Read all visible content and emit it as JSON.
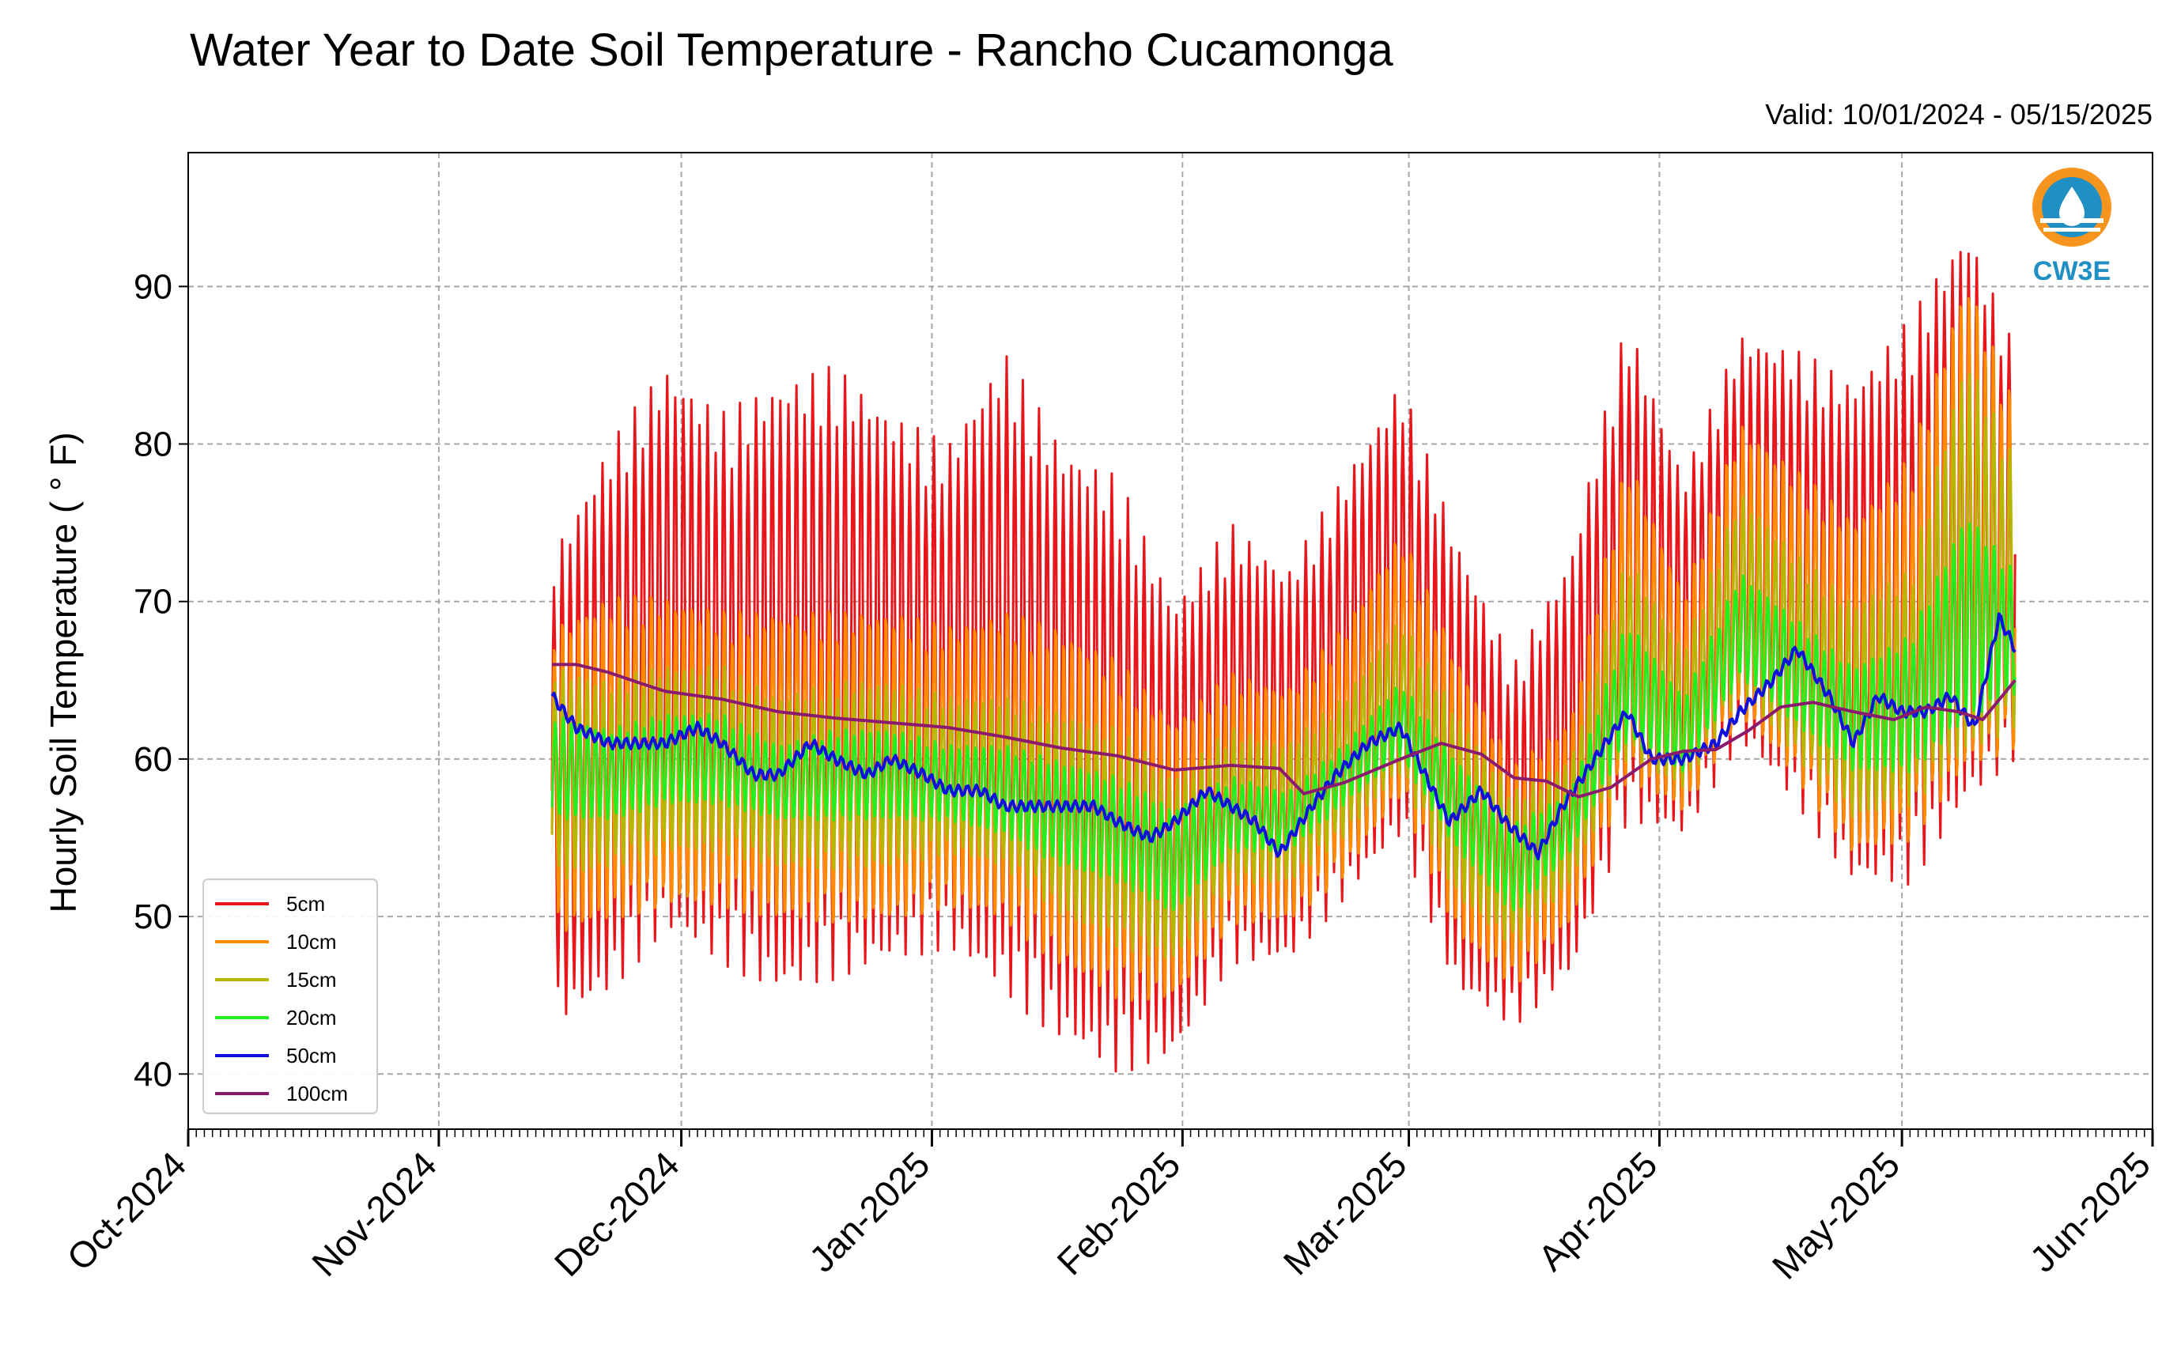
{
  "chart_data": {
    "type": "line",
    "title": "Water Year to Date Soil Temperature - Rancho Cucamonga",
    "subtitle": "Valid: 10/01/2024 - 05/15/2025",
    "xlabel": "",
    "ylabel": "Hourly Soil Temperature ( ° F)",
    "ylim": [
      36.5,
      98.5
    ],
    "yticks": [
      40,
      50,
      60,
      70,
      80,
      90
    ],
    "xlim": [
      "2024-10-01",
      "2025-06-01"
    ],
    "xticks": [
      {
        "date": "2024-10-01",
        "label": "Oct-2024"
      },
      {
        "date": "2024-11-01",
        "label": "Nov-2024"
      },
      {
        "date": "2024-12-01",
        "label": "Dec-2024"
      },
      {
        "date": "2025-01-01",
        "label": "Jan-2025"
      },
      {
        "date": "2025-02-01",
        "label": "Feb-2025"
      },
      {
        "date": "2025-03-01",
        "label": "Mar-2025"
      },
      {
        "date": "2025-04-01",
        "label": "Apr-2025"
      },
      {
        "date": "2025-05-01",
        "label": "May-2025"
      },
      {
        "date": "2025-06-01",
        "label": "Jun-2025"
      }
    ],
    "grid": true,
    "legend_position": "lower-left",
    "logo_text": "CW3E",
    "series": [
      {
        "name": "5cm",
        "color": "#e8151b",
        "dates": [
          "2024-11-15",
          "2024-11-22",
          "2024-11-29",
          "2024-12-06",
          "2024-12-13",
          "2024-12-20",
          "2024-12-27",
          "2025-01-03",
          "2025-01-10",
          "2025-01-17",
          "2025-01-24",
          "2025-01-31",
          "2025-02-07",
          "2025-02-14",
          "2025-02-21",
          "2025-02-28",
          "2025-03-07",
          "2025-03-14",
          "2025-03-21",
          "2025-03-28",
          "2025-04-04",
          "2025-04-11",
          "2025-04-18",
          "2025-04-25",
          "2025-05-02",
          "2025-05-09",
          "2025-05-15"
        ],
        "max": [
          73,
          80,
          85,
          82,
          84,
          85,
          82,
          80,
          86,
          80,
          78,
          70,
          75,
          72,
          78,
          84,
          74,
          66,
          73,
          88,
          78,
          87,
          86,
          84,
          88,
          94,
          86
        ],
        "min": [
          43,
          45,
          49,
          47,
          45,
          46,
          47,
          48,
          45,
          42,
          40,
          41,
          47,
          47,
          51,
          55,
          45,
          43,
          46,
          56,
          55,
          61,
          57,
          52,
          52,
          57,
          60
        ]
      },
      {
        "name": "10cm",
        "color": "#ff8c00",
        "dates": [
          "2024-11-15",
          "2024-11-22",
          "2024-11-29",
          "2024-12-06",
          "2024-12-13",
          "2024-12-20",
          "2024-12-27",
          "2025-01-03",
          "2025-01-10",
          "2025-01-17",
          "2025-01-24",
          "2025-01-31",
          "2025-02-07",
          "2025-02-14",
          "2025-02-21",
          "2025-02-28",
          "2025-03-07",
          "2025-03-14",
          "2025-03-21",
          "2025-03-28",
          "2025-04-04",
          "2025-04-11",
          "2025-04-18",
          "2025-04-25",
          "2025-05-02",
          "2025-05-09",
          "2025-05-15"
        ],
        "max": [
          69,
          71,
          71,
          70,
          70,
          70,
          70,
          69,
          70,
          69,
          67,
          63,
          66,
          65,
          69,
          75,
          67,
          60,
          63,
          80,
          71,
          82,
          79,
          76,
          80,
          92,
          83
        ],
        "min": [
          48,
          49,
          50,
          50,
          49,
          49,
          49,
          50,
          49,
          46,
          44,
          44,
          49,
          49,
          52,
          57,
          48,
          45,
          49,
          58,
          56,
          62,
          58,
          53,
          54,
          58,
          60
        ]
      },
      {
        "name": "15cm",
        "color": "#b5b800",
        "dates": [
          "2024-11-15",
          "2024-11-22",
          "2024-11-29",
          "2024-12-06",
          "2024-12-13",
          "2024-12-20",
          "2024-12-27",
          "2025-01-03",
          "2025-01-10",
          "2025-01-17",
          "2025-01-24",
          "2025-01-31",
          "2025-02-07",
          "2025-02-14",
          "2025-02-21",
          "2025-02-28",
          "2025-03-07",
          "2025-03-14",
          "2025-03-21",
          "2025-03-28",
          "2025-04-04",
          "2025-04-11",
          "2025-04-18",
          "2025-04-25",
          "2025-05-02",
          "2025-05-09",
          "2025-05-15"
        ],
        "max": [
          66,
          65,
          66,
          66,
          64,
          65,
          65,
          64,
          64,
          63,
          62,
          59,
          62,
          61,
          64,
          69,
          63,
          58,
          60,
          73,
          67,
          77,
          73,
          70,
          72,
          86,
          79
        ],
        "min": [
          52,
          53,
          54,
          54,
          53,
          53,
          53,
          54,
          53,
          50,
          48,
          47,
          52,
          52,
          55,
          59,
          51,
          48,
          52,
          60,
          58,
          64,
          60,
          56,
          57,
          60,
          62
        ]
      },
      {
        "name": "20cm",
        "color": "#22ee22",
        "dates": [
          "2024-11-15",
          "2024-11-22",
          "2024-11-29",
          "2024-12-06",
          "2024-12-13",
          "2024-12-20",
          "2024-12-27",
          "2025-01-03",
          "2025-01-10",
          "2025-01-17",
          "2025-01-24",
          "2025-01-31",
          "2025-02-07",
          "2025-02-14",
          "2025-02-21",
          "2025-02-28",
          "2025-03-07",
          "2025-03-14",
          "2025-03-21",
          "2025-03-28",
          "2025-04-04",
          "2025-04-11",
          "2025-04-18",
          "2025-04-25",
          "2025-05-02",
          "2025-05-09",
          "2025-05-15"
        ],
        "max": [
          63,
          62,
          63,
          63,
          61,
          62,
          62,
          61,
          61,
          60,
          59,
          57,
          59,
          58,
          61,
          65,
          60,
          56,
          58,
          69,
          64,
          72,
          69,
          66,
          68,
          76,
          72
        ],
        "min": [
          56,
          56,
          57,
          57,
          56,
          56,
          56,
          56,
          55,
          53,
          52,
          50,
          54,
          54,
          57,
          60,
          54,
          50,
          54,
          61,
          59,
          65,
          62,
          59,
          59,
          62,
          64
        ]
      },
      {
        "name": "50cm",
        "color": "#1010dd",
        "dates": [
          "2024-11-15",
          "2024-11-18",
          "2024-11-22",
          "2024-11-29",
          "2024-12-03",
          "2024-12-06",
          "2024-12-10",
          "2024-12-13",
          "2024-12-17",
          "2024-12-20",
          "2024-12-24",
          "2024-12-27",
          "2024-12-31",
          "2025-01-03",
          "2025-01-07",
          "2025-01-10",
          "2025-01-14",
          "2025-01-17",
          "2025-01-21",
          "2025-01-24",
          "2025-01-28",
          "2025-01-31",
          "2025-02-04",
          "2025-02-07",
          "2025-02-10",
          "2025-02-13",
          "2025-02-17",
          "2025-02-20",
          "2025-02-24",
          "2025-02-28",
          "2025-03-03",
          "2025-03-06",
          "2025-03-10",
          "2025-03-13",
          "2025-03-17",
          "2025-03-20",
          "2025-03-24",
          "2025-03-28",
          "2025-03-31",
          "2025-04-04",
          "2025-04-08",
          "2025-04-11",
          "2025-04-15",
          "2025-04-18",
          "2025-04-22",
          "2025-04-25",
          "2025-04-28",
          "2025-05-01",
          "2025-05-04",
          "2025-05-07",
          "2025-05-10",
          "2025-05-13",
          "2025-05-15"
        ],
        "values": [
          64,
          62,
          61,
          61,
          62,
          61,
          59,
          59,
          61,
          60,
          59,
          60,
          59,
          58,
          58,
          57,
          57,
          57,
          57,
          56,
          55,
          56,
          58,
          57,
          56,
          54,
          57,
          59,
          61,
          62,
          59,
          56,
          58,
          56,
          54,
          57,
          60,
          63,
          60,
          60,
          61,
          63,
          65,
          67,
          64,
          61,
          64,
          63,
          63,
          64,
          62,
          69,
          67
        ]
      },
      {
        "name": "100cm",
        "color": "#8a1a6e",
        "dates": [
          "2024-11-15",
          "2024-11-18",
          "2024-11-22",
          "2024-11-26",
          "2024-11-29",
          "2024-12-06",
          "2024-12-13",
          "2024-12-20",
          "2024-12-27",
          "2025-01-03",
          "2025-01-10",
          "2025-01-17",
          "2025-01-24",
          "2025-01-31",
          "2025-02-07",
          "2025-02-13",
          "2025-02-16",
          "2025-02-21",
          "2025-02-28",
          "2025-03-05",
          "2025-03-10",
          "2025-03-14",
          "2025-03-18",
          "2025-03-22",
          "2025-03-26",
          "2025-03-31",
          "2025-04-04",
          "2025-04-08",
          "2025-04-12",
          "2025-04-16",
          "2025-04-20",
          "2025-04-25",
          "2025-04-30",
          "2025-05-04",
          "2025-05-08",
          "2025-05-11",
          "2025-05-15"
        ],
        "values": [
          66,
          66,
          65.5,
          64.8,
          64.3,
          63.8,
          63,
          62.6,
          62.3,
          62,
          61.4,
          60.7,
          60.2,
          59.3,
          59.6,
          59.4,
          57.8,
          58.5,
          60,
          61,
          60.3,
          58.8,
          58.6,
          57.6,
          58.2,
          60,
          60.5,
          60.6,
          61.8,
          63.3,
          63.6,
          63,
          62.5,
          63.3,
          63,
          62.5,
          65
        ]
      }
    ]
  }
}
